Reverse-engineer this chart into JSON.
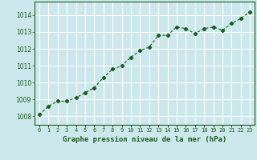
{
  "x": [
    0,
    1,
    2,
    3,
    4,
    5,
    6,
    7,
    8,
    9,
    10,
    11,
    12,
    13,
    14,
    15,
    16,
    17,
    18,
    19,
    20,
    21,
    22,
    23
  ],
  "y": [
    1008.1,
    1008.6,
    1008.9,
    1008.9,
    1009.1,
    1009.4,
    1009.7,
    1010.3,
    1010.8,
    1011.0,
    1011.5,
    1011.9,
    1012.1,
    1012.8,
    1012.8,
    1013.3,
    1013.2,
    1012.9,
    1013.2,
    1013.3,
    1013.1,
    1013.5,
    1013.8,
    1014.2
  ],
  "line_color": "#1a5c1a",
  "marker": "D",
  "marker_size": 2.2,
  "bg_color": "#cce8ec",
  "grid_color": "#ffffff",
  "xlabel": "Graphe pression niveau de la mer (hPa)",
  "xlabel_color": "#1a5c1a",
  "tick_color": "#1a5c1a",
  "ylim": [
    1007.5,
    1014.8
  ],
  "yticks": [
    1008,
    1009,
    1010,
    1011,
    1012,
    1013,
    1014
  ],
  "xlim": [
    -0.5,
    23.5
  ],
  "xticks": [
    0,
    1,
    2,
    3,
    4,
    5,
    6,
    7,
    8,
    9,
    10,
    11,
    12,
    13,
    14,
    15,
    16,
    17,
    18,
    19,
    20,
    21,
    22,
    23
  ],
  "xtick_labels": [
    "0",
    "1",
    "2",
    "3",
    "4",
    "5",
    "6",
    "7",
    "8",
    "9",
    "10",
    "11",
    "12",
    "13",
    "14",
    "15",
    "16",
    "17",
    "18",
    "19",
    "20",
    "21",
    "22",
    "23"
  ],
  "line_width": 0.8
}
